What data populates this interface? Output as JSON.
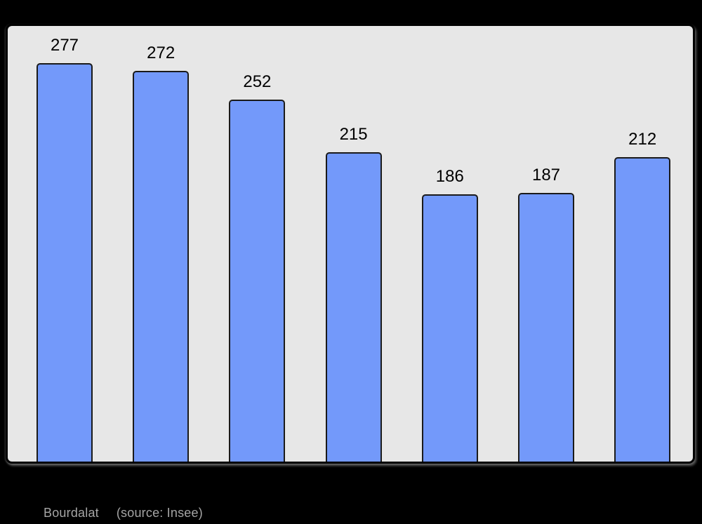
{
  "page": {
    "background": "#000000"
  },
  "panel": {
    "background": "#e7e7e7",
    "border_color": "#000000"
  },
  "caption": {
    "title": "Bourdalat",
    "source": "(source: Insee)",
    "color": "#a5a5a5"
  },
  "chart_data": {
    "type": "bar",
    "values": [
      277,
      272,
      252,
      215,
      186,
      187,
      212
    ],
    "data_labels": [
      "277",
      "272",
      "252",
      "215",
      "186",
      "187",
      "212"
    ],
    "title": "",
    "xlabel": "",
    "ylabel": "",
    "ylim": [
      0,
      303
    ],
    "grid": false,
    "legend": false,
    "x_tick_labels_visible": false,
    "y_axis_visible": false,
    "bar_color": "#7399FA",
    "bar_border_color": "#1a1a1a",
    "label_color": "#000000",
    "plot_background": "#e7e7e7"
  }
}
